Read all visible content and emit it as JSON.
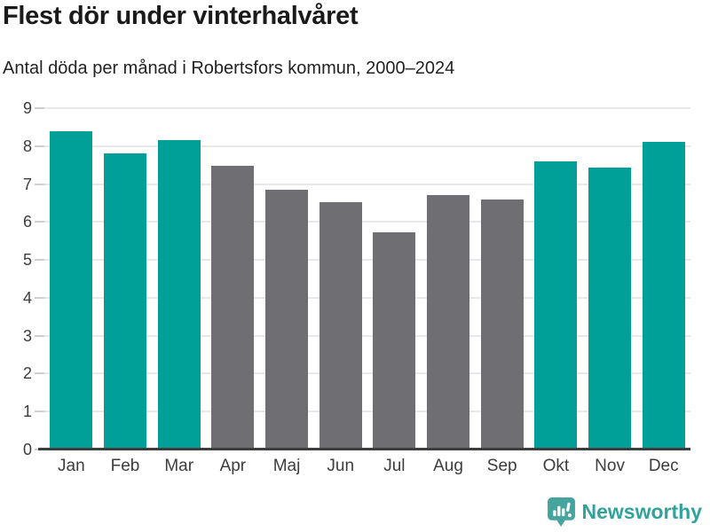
{
  "header": {
    "title": "Flest dör under vinterhalvåret",
    "subtitle": "Antal döda per månad i Robertsfors kommun, 2000–2024"
  },
  "chart_data": {
    "type": "bar",
    "title": "Flest dör under vinterhalvåret",
    "subtitle": "Antal döda per månad i Robertsfors kommun, 2000–2024",
    "categories": [
      "Jan",
      "Feb",
      "Mar",
      "Apr",
      "Maj",
      "Jun",
      "Jul",
      "Aug",
      "Sep",
      "Okt",
      "Nov",
      "Dec"
    ],
    "values": [
      8.4,
      7.8,
      8.16,
      7.48,
      6.84,
      6.52,
      5.72,
      6.72,
      6.6,
      7.6,
      7.44,
      8.12
    ],
    "bar_color_keys": [
      "winter",
      "winter",
      "winter",
      "summer",
      "summer",
      "summer",
      "summer",
      "summer",
      "summer",
      "winter",
      "winter",
      "winter"
    ],
    "colors": {
      "winter": "#00a099",
      "summer": "#6f6e73",
      "gridline": "#e8e8e8",
      "axis": "#3d3d3d",
      "tick": "#cfcfcf"
    },
    "xlabel": "",
    "ylabel": "",
    "ylim": [
      0,
      9
    ],
    "yticks": [
      0,
      1,
      2,
      3,
      4,
      5,
      6,
      7,
      8,
      9
    ],
    "grid": true,
    "legend": false
  },
  "footer": {
    "brand": "Newsworthy",
    "logo_icon": "newsworthy-bar-chart-bubble-icon",
    "brand_text_color": "#2fa39c",
    "brand_badge_color": "#46a49f"
  }
}
